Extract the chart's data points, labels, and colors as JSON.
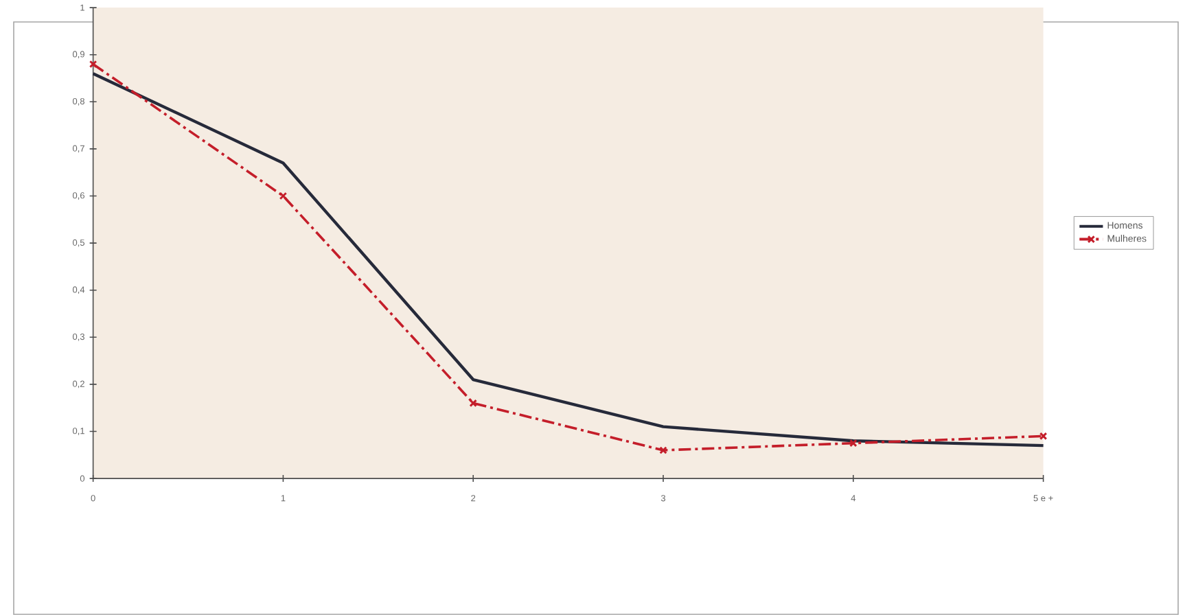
{
  "chart_data": {
    "type": "line",
    "categories": [
      "0",
      "1",
      "2",
      "3",
      "4",
      "5 e +"
    ],
    "series": [
      {
        "name": "Homens",
        "color": "#262a3a",
        "values": [
          0.86,
          0.67,
          0.21,
          0.11,
          0.08,
          0.07
        ],
        "marker": "none",
        "line_style": "solid"
      },
      {
        "name": "Mulheres",
        "color": "#c41e2a",
        "values": [
          0.88,
          0.6,
          0.16,
          0.06,
          0.075,
          0.09
        ],
        "marker": "cross",
        "line_style": "dashdot"
      }
    ],
    "ylim": [
      0,
      1
    ],
    "yticks": [
      0,
      {
        "value": 0.1,
        "label": "0,1"
      },
      {
        "value": 0.2,
        "label": "0,2"
      },
      {
        "value": 0.3,
        "label": "0,3"
      },
      {
        "value": 0.4,
        "label": "0,4"
      },
      {
        "value": 0.5,
        "label": "0,5"
      },
      {
        "value": 0.6,
        "label": "0,6"
      },
      {
        "value": 0.7,
        "label": "0,7"
      },
      {
        "value": 0.8,
        "label": "0,8"
      },
      {
        "value": 0.9,
        "label": "0,9"
      },
      1
    ],
    "grid": false,
    "legend": "right"
  }
}
